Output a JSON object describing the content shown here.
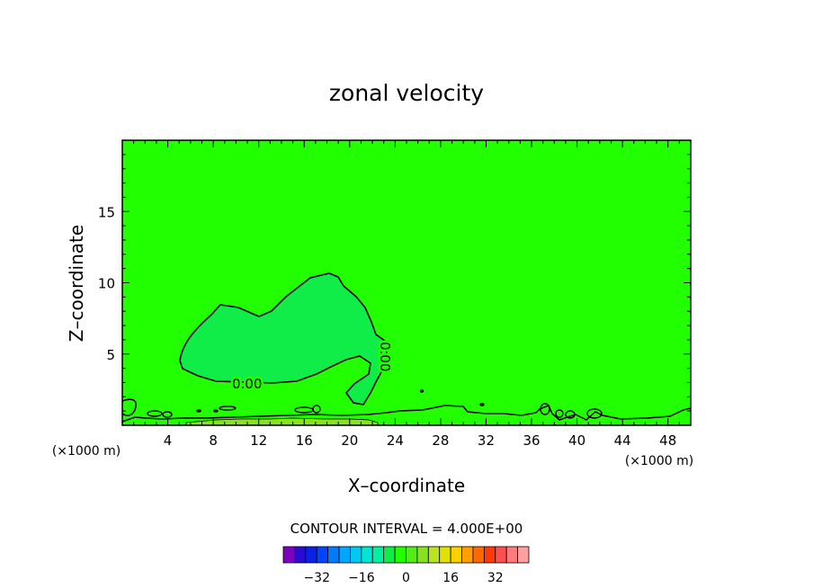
{
  "chart_data": {
    "type": "contour",
    "title": "zonal velocity",
    "xlabel": "X–coordinate",
    "ylabel": "Z–coordinate",
    "x_unit_left": "(×1000 m)",
    "x_unit_right": "(×1000 m)",
    "xlim": [
      0,
      50
    ],
    "ylim": [
      0,
      20
    ],
    "x_ticks": [
      4,
      8,
      12,
      16,
      20,
      24,
      28,
      32,
      36,
      40,
      44,
      48
    ],
    "y_ticks": [
      5,
      10,
      15
    ],
    "contour_level_label": "0.00",
    "contour_interval_text": "CONTOUR INTERVAL = 4.000E+00",
    "background_color": "#21ff00",
    "positive_region_color": "#86e31c",
    "negative_region_color": "#10ed48",
    "colorbar": {
      "colors": [
        "#8000c0",
        "#2a0bd0",
        "#0a22e6",
        "#0045ff",
        "#007dff",
        "#00a6ff",
        "#00c8f0",
        "#00e6d2",
        "#00f2a0",
        "#10ed48",
        "#21ff00",
        "#55ea1a",
        "#86e31c",
        "#b8e51e",
        "#e2e200",
        "#ffd000",
        "#ff9f00",
        "#ff6a00",
        "#ff3a0a",
        "#ff5050",
        "#ff7c7c",
        "#ffa0a0"
      ],
      "tick_values": [
        -32,
        -16,
        0,
        16,
        32
      ],
      "tick_labels": [
        "−32",
        "−16",
        "0",
        "16",
        "32"
      ]
    }
  }
}
